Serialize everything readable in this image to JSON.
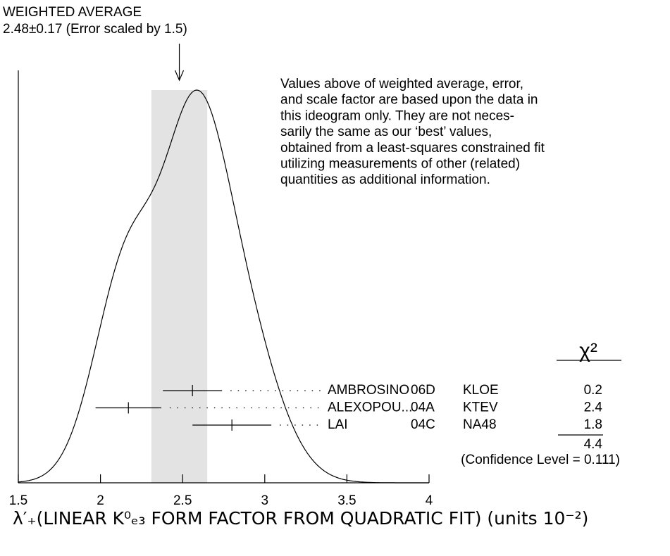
{
  "chart_data": {
    "type": "ideogram",
    "weighted_average": {
      "label": "WEIGHTED AVERAGE",
      "text": "2.48±0.17 (Error scaled by 1.5)",
      "value": 2.48,
      "error": 0.17
    },
    "note": [
      "Values above of weighted average, error,",
      "and scale factor are based upon the data in",
      "this ideogram only.  They are not neces-",
      "sarily the same as our ‘best’ values,",
      "obtained from a least-squares constrained fit",
      "utilizing measurements of other (related)",
      "quantities as additional information."
    ],
    "measurements": [
      {
        "name": "AMBROSINO",
        "year": "06D",
        "experiment": "KLOE",
        "value": 2.56,
        "error": 0.18,
        "chi2": 0.2
      },
      {
        "name": "ALEXOPOU...",
        "year": "04A",
        "experiment": "KTEV",
        "value": 2.17,
        "error": 0.2,
        "chi2": 2.4
      },
      {
        "name": "LAI",
        "year": "04C",
        "experiment": "NA48",
        "value": 2.8,
        "error": 0.24,
        "chi2": 1.8
      }
    ],
    "chi2_header": "χ²",
    "chi2_total": 4.4,
    "confidence_level": "(Confidence Level = 0.111)",
    "x_label": "λ′₊(LINEAR K⁰ₑ₃ FORM FACTOR FROM QUADRATIC FIT) (units 10⁻²)",
    "xlim": [
      1.5,
      4
    ],
    "xticks": [
      1.5,
      2,
      2.5,
      3,
      3.5,
      4
    ]
  }
}
